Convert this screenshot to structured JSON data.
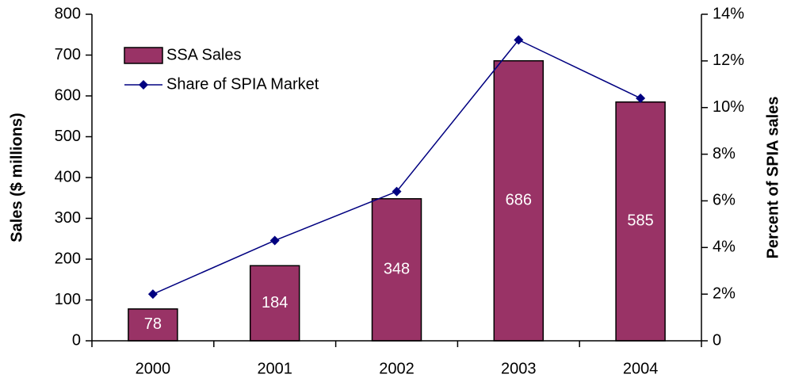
{
  "chart_data": {
    "type": "bar",
    "categories": [
      "2000",
      "2001",
      "2002",
      "2003",
      "2004"
    ],
    "series": [
      {
        "name": "SSA Sales",
        "type": "bar",
        "color": "#993366",
        "values": [
          78,
          184,
          348,
          686,
          585
        ]
      },
      {
        "name": "Share of SPIA Market",
        "type": "line",
        "axis": "y2",
        "color": "#000080",
        "values": [
          2,
          4.3,
          6.4,
          12.9,
          10.4
        ]
      }
    ],
    "ylabel": "Sales ($ millions)",
    "y2label": "Percent of SPIA sales",
    "ylim": [
      0,
      800
    ],
    "yticks": [
      0,
      100,
      200,
      300,
      400,
      500,
      600,
      700,
      800
    ],
    "y2lim": [
      0,
      14
    ],
    "y2ticks": [
      0,
      {
        "value": 2,
        "label": "2%"
      },
      {
        "value": 4,
        "label": "4%"
      },
      {
        "value": 6,
        "label": "6%"
      },
      {
        "value": 8,
        "label": "8%"
      },
      {
        "value": 10,
        "label": "10%"
      },
      {
        "value": 12,
        "label": "12%"
      },
      {
        "value": 14,
        "label": "14%"
      }
    ],
    "legend": "upper left",
    "data_labels": true
  }
}
